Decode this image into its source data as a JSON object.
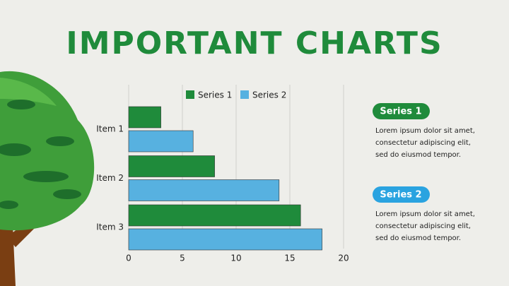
{
  "chart_data": {
    "type": "hbar",
    "title": "IMPORTANT CHARTS",
    "categories": [
      "Item 1",
      "Item 2",
      "Item 3"
    ],
    "series": [
      {
        "name": "Series 1",
        "color": "#1f8b3b",
        "values": [
          3,
          8,
          16
        ]
      },
      {
        "name": "Series 2",
        "color": "#57b1e0",
        "values": [
          6,
          14,
          18
        ]
      }
    ],
    "xlim": [
      0,
      20
    ],
    "xticks": [
      0,
      5,
      10,
      15,
      20
    ],
    "grid": true,
    "legend": "top"
  },
  "notes": [
    {
      "label": "Series 1",
      "color": "#1f8b3b",
      "lines": [
        "Lorem ipsum dolor sit amet,",
        "consectetur adipiscing elit,",
        "sed do eiusmod tempor."
      ]
    },
    {
      "label": "Series 2",
      "color": "#2aa3e0",
      "lines": [
        "Lorem ipsum dolor sit amet,",
        "consectetur adipiscing elit,",
        "sed do eiusmod tempor."
      ]
    }
  ]
}
